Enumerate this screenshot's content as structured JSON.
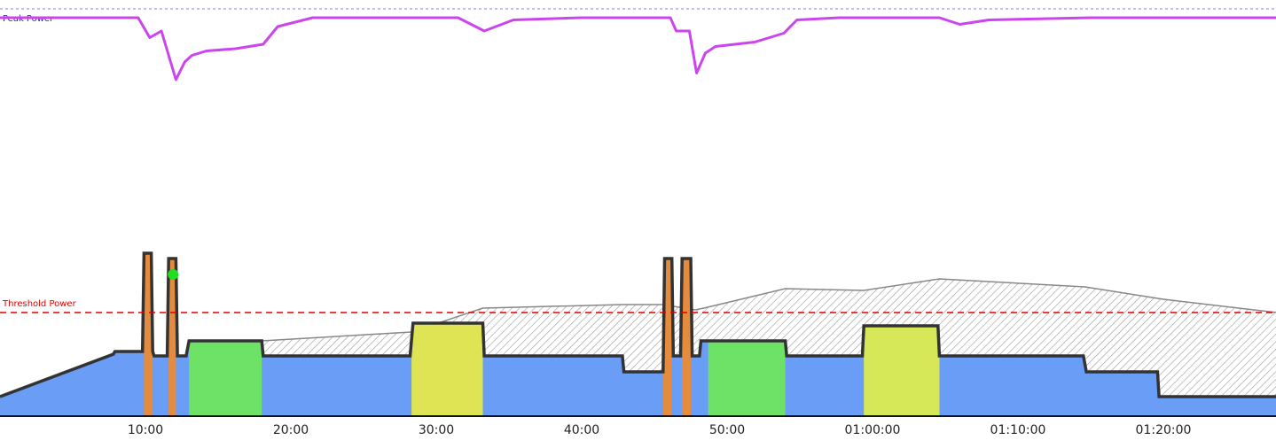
{
  "chart_data": {
    "type": "area",
    "x_unit": "elapsed time (mm:ss / hh:mm:ss)",
    "x_ticks": [
      "10:00",
      "20:00",
      "30:00",
      "40:00",
      "50:00",
      "01:00:00",
      "01:10:00",
      "01:20:00"
    ],
    "x_tick_minutes": [
      10,
      20,
      30,
      40,
      50,
      60,
      70,
      80
    ],
    "x_range_minutes": [
      0,
      87.8
    ],
    "reference_lines": {
      "peak_power_label": "Peak Power",
      "threshold_power_label": "Threshold Power",
      "peak_color": "#8080d0",
      "threshold_color": "#e00000"
    },
    "series": [
      {
        "role": "peak-curve",
        "color": "#cc44ee",
        "x": [
          0,
          9.5,
          10.3,
          11.1,
          12.1,
          12.7,
          13.2,
          14.2,
          16.2,
          18.1,
          19.1,
          21.5,
          24.8,
          28.2,
          31.5,
          33.3,
          35.3,
          40.0,
          45.0,
          46.1,
          46.5,
          47.4,
          47.9,
          48.5,
          49.2,
          51.9,
          53.9,
          54.8,
          57.7,
          61.2,
          64.6,
          66.0,
          68.0,
          75.0,
          87.8
        ],
        "y": [
          -0.4,
          -0.4,
          -1.3,
          -1.0,
          -3.2,
          -2.4,
          -2.1,
          -1.9,
          -1.8,
          -1.6,
          -0.8,
          -0.4,
          -0.4,
          -0.4,
          -0.4,
          -1.0,
          -0.5,
          -0.4,
          -0.4,
          -0.4,
          -1.0,
          -1.0,
          -2.9,
          -2.0,
          -1.7,
          -1.5,
          -1.1,
          -0.5,
          -0.4,
          -0.4,
          -0.4,
          -0.7,
          -0.5,
          -0.4,
          -0.4
        ]
      },
      {
        "role": "stored-energy-hatched",
        "color": "#888888",
        "x": [
          0,
          18.0,
          28.3,
          33.2,
          42.8,
          45.6,
          47.8,
          48.4,
          54.0,
          59.4,
          64.6,
          74.6,
          80.0,
          87.8
        ],
        "y": [
          null,
          385,
          395,
          422,
          426,
          426,
          420,
          422,
          444,
          442,
          455,
          446,
          432,
          417
        ]
      },
      {
        "role": "power",
        "color": "#333333",
        "x": [
          0,
          7.8,
          7.9,
          9.8,
          9.9,
          10.0,
          10.4,
          10.5,
          10.6,
          11.5,
          11.6,
          12.1,
          12.2,
          12.8,
          13.0,
          18.0,
          18.1,
          28.2,
          28.4,
          33.2,
          33.3,
          42.8,
          42.9,
          45.6,
          45.7,
          46.2,
          46.3,
          46.8,
          46.9,
          47.5,
          47.6,
          48.1,
          48.2,
          48.7,
          48.9,
          54.0,
          54.1,
          59.3,
          59.4,
          64.5,
          64.6,
          74.5,
          74.7,
          79.6,
          79.7,
          87.8
        ],
        "y": [
          322,
          370,
          373,
          373,
          484,
          484,
          484,
          373,
          368,
          368,
          478,
          478,
          368,
          368,
          385,
          385,
          368,
          368,
          405,
          405,
          368,
          368,
          350,
          350,
          478,
          478,
          368,
          368,
          478,
          478,
          368,
          368,
          385,
          385,
          385,
          385,
          368,
          368,
          402,
          402,
          368,
          368,
          350,
          350,
          322,
          322
        ]
      }
    ],
    "zone_bands": [
      {
        "from": 9.9,
        "to": 10.5,
        "zone": "anaerobic",
        "color": "#f08a2e"
      },
      {
        "from": 11.6,
        "to": 12.1,
        "zone": "anaerobic",
        "color": "#f08a2e"
      },
      {
        "from": 13.0,
        "to": 18.0,
        "zone": "threshold",
        "color": "#6fe85a"
      },
      {
        "from": 28.3,
        "to": 33.2,
        "zone": "vo2",
        "color": "#e8ea45"
      },
      {
        "from": 45.6,
        "to": 46.2,
        "zone": "anaerobic",
        "color": "#f08a2e"
      },
      {
        "from": 46.9,
        "to": 47.5,
        "zone": "anaerobic",
        "color": "#f08a2e"
      },
      {
        "from": 48.7,
        "to": 54.0,
        "zone": "threshold",
        "color": "#6fe85a"
      },
      {
        "from": 59.4,
        "to": 64.6,
        "zone": "vo2",
        "color": "#e0ee4a"
      }
    ],
    "base_fill_color": "#6a9df5",
    "marker": {
      "x": 11.9,
      "y": 460,
      "color": "#22dd22"
    },
    "hatched_region_color": "#999999",
    "grid": false,
    "legend": "none"
  }
}
